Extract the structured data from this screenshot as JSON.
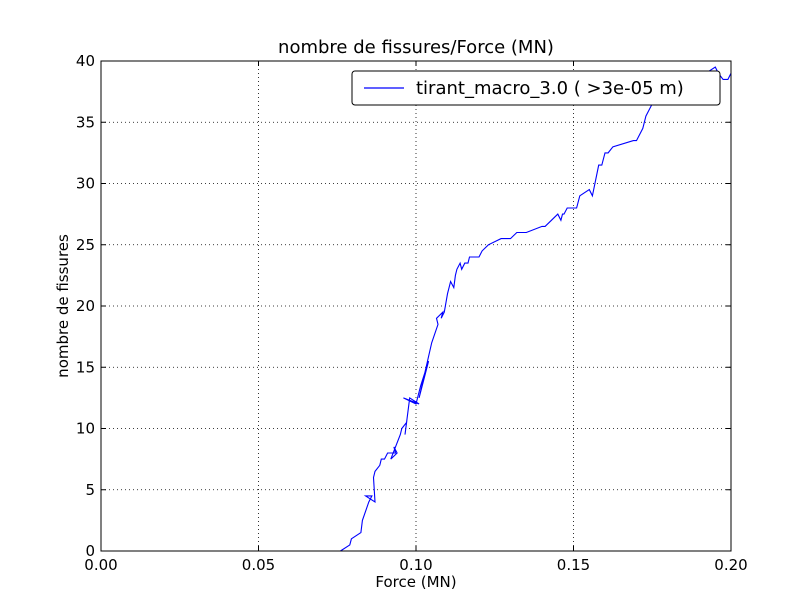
{
  "chart_data": {
    "type": "line",
    "title": "nombre de fissures/Force (MN)",
    "xlabel": "Force (MN)",
    "ylabel": "nombre de fissures",
    "xlim": [
      0.0,
      0.2
    ],
    "ylim": [
      0,
      40
    ],
    "xticks": [
      "0.00",
      "0.05",
      "0.10",
      "0.15",
      "0.20"
    ],
    "yticks": [
      "0",
      "5",
      "10",
      "15",
      "20",
      "25",
      "30",
      "35",
      "40"
    ],
    "grid": true,
    "legend_position": "top-right",
    "series": [
      {
        "name": "tirant_macro_3.0 ( >3e-05 m)",
        "color": "#0000ff",
        "x": [
          0.076,
          0.079,
          0.0795,
          0.0825,
          0.083,
          0.085,
          0.086,
          0.084,
          0.087,
          0.0865,
          0.087,
          0.0885,
          0.089,
          0.09,
          0.091,
          0.0935,
          0.093,
          0.094,
          0.092,
          0.095,
          0.0955,
          0.097,
          0.0965,
          0.098,
          0.101,
          0.096,
          0.1,
          0.1015,
          0.104,
          0.101,
          0.105,
          0.107,
          0.1065,
          0.1085,
          0.108,
          0.109,
          0.11,
          0.111,
          0.112,
          0.1125,
          0.113,
          0.114,
          0.1145,
          0.1155,
          0.1165,
          0.117,
          0.12,
          0.121,
          0.123,
          0.127,
          0.129,
          0.13,
          0.132,
          0.135,
          0.14,
          0.141,
          0.143,
          0.145,
          0.146,
          0.1465,
          0.147,
          0.148,
          0.149,
          0.151,
          0.152,
          0.155,
          0.156,
          0.158,
          0.159,
          0.16,
          0.161,
          0.1625,
          0.169,
          0.17,
          0.172,
          0.173,
          0.175,
          0.177,
          0.18,
          0.181,
          0.182,
          0.184,
          0.185,
          0.186,
          0.188,
          0.19,
          0.192,
          0.195,
          0.196,
          0.1975,
          0.199,
          0.2
        ],
        "y": [
          0.0,
          0.5,
          1.0,
          1.5,
          2.5,
          4.0,
          4.5,
          4.5,
          4.0,
          6.0,
          6.5,
          7.0,
          7.5,
          7.5,
          8.0,
          8.0,
          8.5,
          8.0,
          7.5,
          9.5,
          10.0,
          10.5,
          9.5,
          12.5,
          12.0,
          12.5,
          12.0,
          13.5,
          15.5,
          12.5,
          17.0,
          18.5,
          19.0,
          19.5,
          19.0,
          19.5,
          21.0,
          22.0,
          21.5,
          22.5,
          23.0,
          23.5,
          23.0,
          23.5,
          23.5,
          24.0,
          24.0,
          24.5,
          25.0,
          25.5,
          25.5,
          25.5,
          26.0,
          26.0,
          26.5,
          26.5,
          27.0,
          27.5,
          27.0,
          27.5,
          27.5,
          28.0,
          28.0,
          28.0,
          29.0,
          29.5,
          29.0,
          31.5,
          31.5,
          32.5,
          32.5,
          33.0,
          33.5,
          33.5,
          34.5,
          35.5,
          36.5,
          37.0,
          37.0,
          37.5,
          37.5,
          38.0,
          38.0,
          39.0,
          38.5,
          38.0,
          39.0,
          39.5,
          39.0,
          38.5,
          38.5,
          39.0
        ]
      }
    ]
  }
}
